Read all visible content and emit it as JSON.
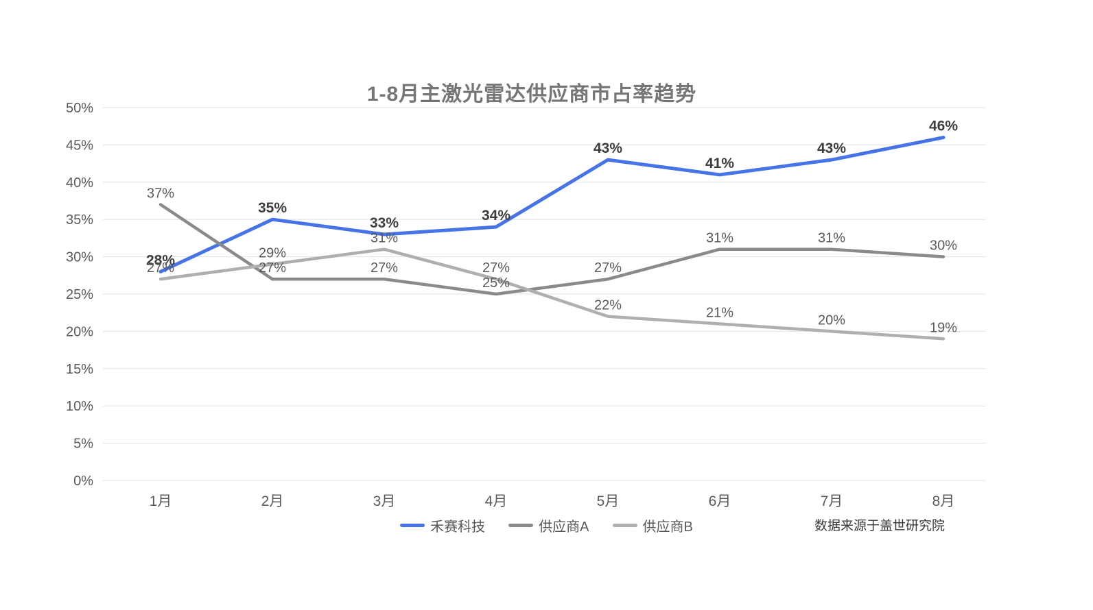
{
  "header": {
    "title": "1-8月主激光雷达供应商市占率趋势"
  },
  "footer": {
    "source_note": "数据来源于盖世研究院"
  },
  "colors": {
    "hesai_blue": "#4773E8",
    "supplier_a_gray": "#8A8A8A",
    "supplier_b_gray": "#AFAFAF",
    "gridline": "#E3E3E3",
    "axis_text": "#595959",
    "data_label": "#595959",
    "data_label_bold": "#3D3D3D",
    "title_text": "#757575",
    "source_text": "#383838"
  },
  "chart_data": {
    "type": "line",
    "title": "1-8月主激光雷达供应商市占率趋势",
    "categories": [
      "1月",
      "2月",
      "3月",
      "4月",
      "5月",
      "6月",
      "7月",
      "8月"
    ],
    "series": [
      {
        "name": "禾赛科技",
        "color": "#4773E8",
        "bold_labels": true,
        "line_width": 5,
        "values": [
          28,
          35,
          33,
          34,
          43,
          41,
          43,
          46
        ]
      },
      {
        "name": "供应商A",
        "color": "#8A8A8A",
        "bold_labels": false,
        "line_width": 4.5,
        "values": [
          37,
          27,
          27,
          25,
          27,
          31,
          31,
          30
        ]
      },
      {
        "name": "供应商B",
        "color": "#AFAFAF",
        "bold_labels": false,
        "line_width": 4.5,
        "values": [
          27,
          29,
          31,
          27,
          22,
          21,
          20,
          19
        ]
      }
    ],
    "xlabel": "",
    "ylabel": "",
    "ylim": [
      0,
      50
    ],
    "ytick_step": 5,
    "ytick_labels": [
      "0%",
      "5%",
      "10%",
      "15%",
      "20%",
      "25%",
      "30%",
      "35%",
      "40%",
      "45%",
      "50%"
    ],
    "value_suffix": "%",
    "grid": true,
    "legend_position": "bottom",
    "source_note": "数据来源于盖世研究院"
  }
}
